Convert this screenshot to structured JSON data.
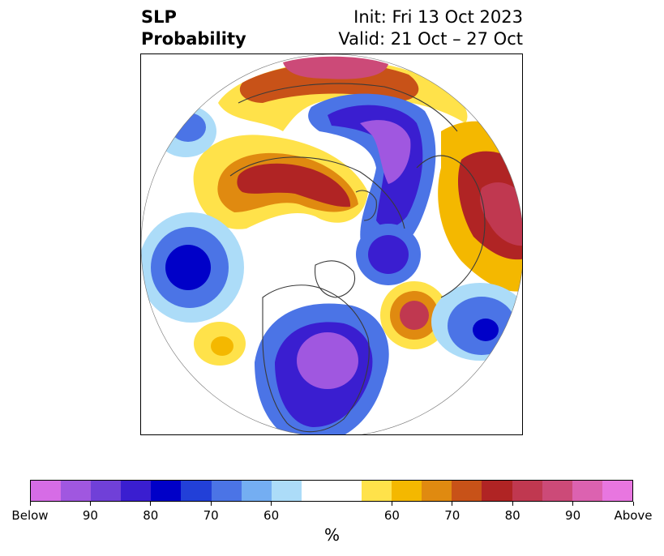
{
  "title": {
    "left_line1": "SLP",
    "left_line2": "Probability",
    "right_line1": "Init: Fri 13 Oct 2023",
    "right_line2": "Valid: 21 Oct – 27 Oct"
  },
  "colorbar": {
    "label": "%",
    "colors": [
      "#d66ce6",
      "#a057e0",
      "#7040d8",
      "#3a1ed0",
      "#0000c8",
      "#2240d8",
      "#4b74e6",
      "#74aef2",
      "#acdcf8",
      "#ffffff",
      "#ffffff",
      "#ffe24a",
      "#f4b800",
      "#e08a10",
      "#c85218",
      "#b02424",
      "#c03850",
      "#cc4a78",
      "#dc62b0",
      "#e876e0"
    ],
    "tick_labels": [
      "Below",
      "90",
      "80",
      "70",
      "60",
      "60",
      "70",
      "80",
      "90",
      "Above"
    ]
  }
}
